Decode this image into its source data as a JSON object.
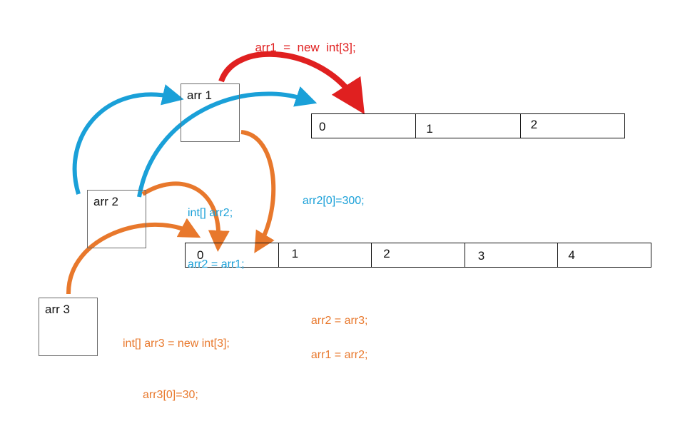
{
  "header_code": "arr1  =  new  int[3];",
  "variables": {
    "arr1": "arr 1",
    "arr2": "arr 2",
    "arr3": "arr 3"
  },
  "array_top": [
    "0",
    "1",
    "2"
  ],
  "array_bottom": [
    "0",
    "1",
    "2",
    "3",
    "4"
  ],
  "code": {
    "arr2_decl": "int[] arr2;",
    "arr2_assign": "arr2 = arr1;",
    "arr2_set": "arr2[0]=300;",
    "arr3_decl": "int[] arr3 = new int[3];",
    "arr3_set": "arr3[0]=30;",
    "arr2_eq_arr3": "arr2 = arr3;",
    "arr1_eq_arr2": "arr1 = arr2;"
  },
  "colors": {
    "red": "#e02020",
    "blue": "#1aa0d8",
    "orange": "#e8782c"
  }
}
